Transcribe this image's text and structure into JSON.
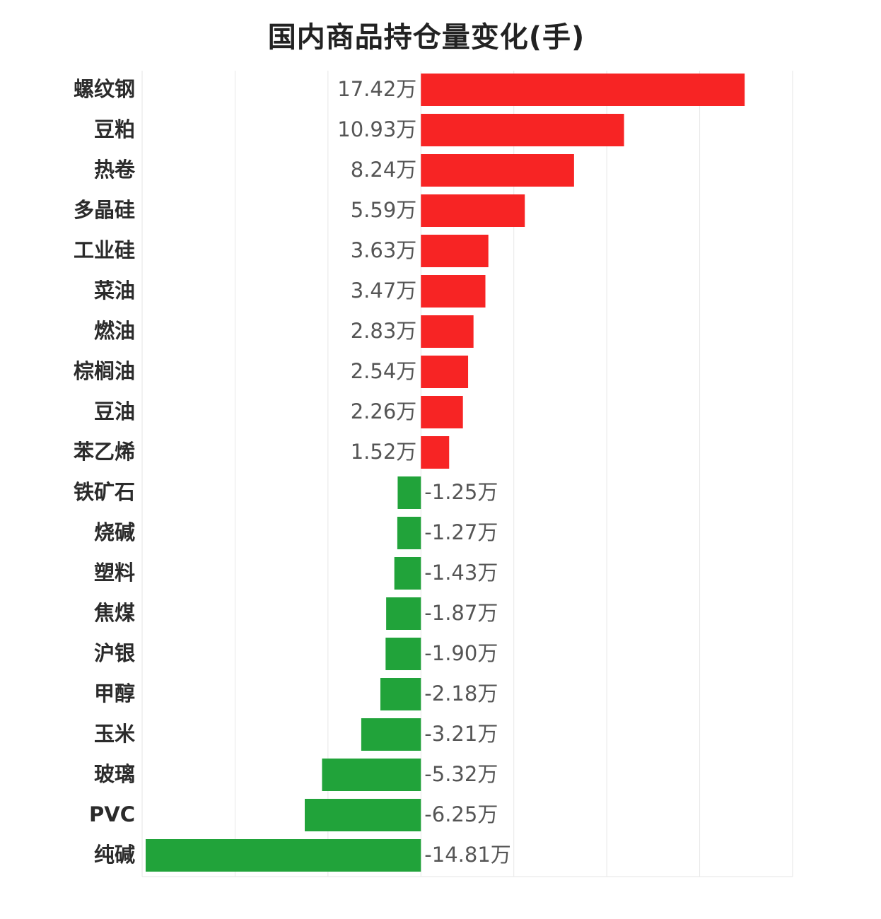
{
  "title": "国内商品持仓量变化(手)",
  "colors": {
    "positive": "#f72424",
    "negative": "#21a33a",
    "grid": "#e6e6e6",
    "category_text": "#2b2b2b",
    "value_text": "#555555"
  },
  "chart_data": {
    "type": "bar",
    "orientation": "horizontal",
    "title": "国内商品持仓量变化(手)",
    "unit_suffix": "万",
    "categories": [
      "螺纹钢",
      "豆粕",
      "热卷",
      "多晶硅",
      "工业硅",
      "菜油",
      "燃油",
      "棕榈油",
      "豆油",
      "苯乙烯",
      "铁矿石",
      "烧碱",
      "塑料",
      "焦煤",
      "沪银",
      "甲醇",
      "玉米",
      "玻璃",
      "PVC",
      "纯碱"
    ],
    "values": [
      17.42,
      10.93,
      8.24,
      5.59,
      3.63,
      3.47,
      2.83,
      2.54,
      2.26,
      1.52,
      -1.25,
      -1.27,
      -1.43,
      -1.87,
      -1.9,
      -2.18,
      -3.21,
      -5.32,
      -6.25,
      -14.81
    ],
    "value_labels": [
      "17.42万",
      "10.93万",
      "8.24万",
      "5.59万",
      "3.63万",
      "3.47万",
      "2.83万",
      "2.54万",
      "2.26万",
      "1.52万",
      "-1.25万",
      "-1.27万",
      "-1.43万",
      "-1.87万",
      "-1.90万",
      "-2.18万",
      "-3.21万",
      "-5.32万",
      "-6.25万",
      "-14.81万"
    ],
    "xlim": [
      -15,
      20
    ],
    "grid_step": 5,
    "grid": true,
    "legend": false,
    "xlabel": "",
    "ylabel": ""
  }
}
